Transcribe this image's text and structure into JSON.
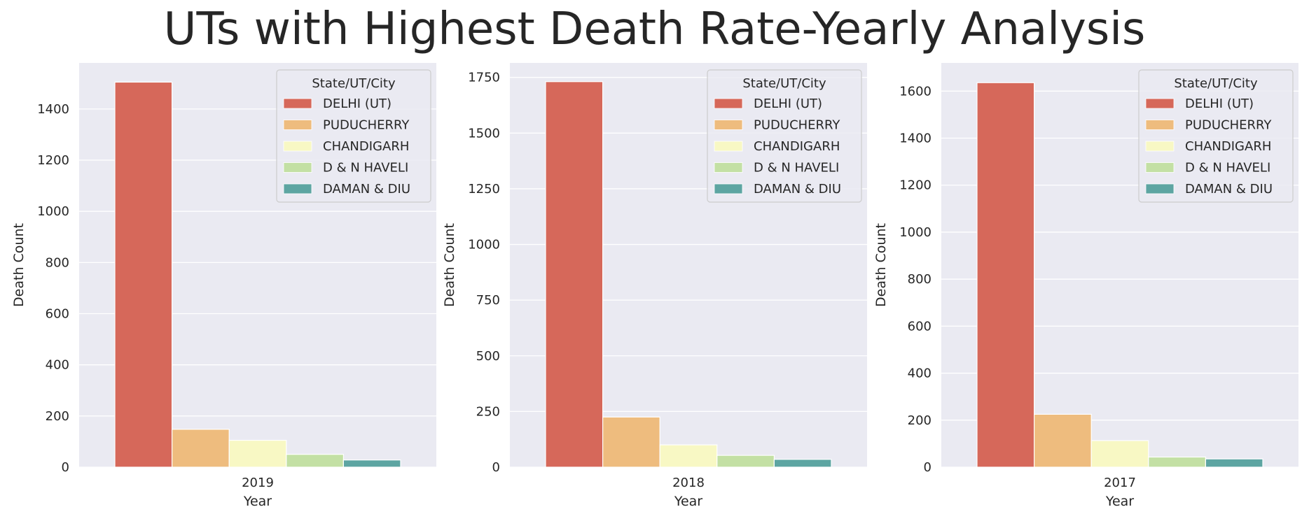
{
  "suptitle": "UTs with Highest Death Rate-Yearly Analysis",
  "colors": {
    "DELHI (UT)": "#d6685a",
    "PUDUCHERRY": "#eebc7e",
    "CHANDIGARH": "#f8f8c4",
    "D & N HAVELI": "#c3e0a4",
    "DAMAN & DIU": "#5da5a2"
  },
  "chart_data": [
    {
      "type": "bar",
      "categories": [
        "2019"
      ],
      "xlabel": "Year",
      "ylabel": "Death Count",
      "ylim": [
        0,
        1580
      ],
      "yticks": [
        0,
        200,
        400,
        600,
        800,
        1000,
        1200,
        1400
      ],
      "ytick_labels": [
        "0",
        "200",
        "400",
        "600",
        "800",
        "1000",
        "1200",
        "1400"
      ],
      "grid": true,
      "legend": {
        "title": "State/UT/City",
        "placement": "upper-right"
      },
      "series": [
        {
          "name": "DELHI (UT)",
          "values": [
            1505
          ]
        },
        {
          "name": "PUDUCHERRY",
          "values": [
            148
          ]
        },
        {
          "name": "CHANDIGARH",
          "values": [
            105
          ]
        },
        {
          "name": "D & N HAVELI",
          "values": [
            50
          ]
        },
        {
          "name": "DAMAN & DIU",
          "values": [
            28
          ]
        }
      ]
    },
    {
      "type": "bar",
      "categories": [
        "2018"
      ],
      "xlabel": "Year",
      "ylabel": "Death Count",
      "ylim": [
        0,
        1815
      ],
      "yticks": [
        0,
        250,
        500,
        750,
        1000,
        1250,
        1500,
        1750
      ],
      "ytick_labels": [
        "0",
        "250",
        "500",
        "750",
        "1000",
        "1250",
        "1500",
        "1750"
      ],
      "grid": true,
      "legend": {
        "title": "State/UT/City",
        "placement": "upper-right"
      },
      "series": [
        {
          "name": "DELHI (UT)",
          "values": [
            1731
          ]
        },
        {
          "name": "PUDUCHERRY",
          "values": [
            225
          ]
        },
        {
          "name": "CHANDIGARH",
          "values": [
            100
          ]
        },
        {
          "name": "D & N HAVELI",
          "values": [
            53
          ]
        },
        {
          "name": "DAMAN & DIU",
          "values": [
            35
          ]
        }
      ]
    },
    {
      "type": "bar",
      "categories": [
        "2017"
      ],
      "xlabel": "Year",
      "ylabel": "Death Count",
      "ylim": [
        0,
        1720
      ],
      "yticks": [
        0,
        200,
        400,
        600,
        800,
        1000,
        1200,
        1400,
        1600
      ],
      "ytick_labels": [
        "0",
        "200",
        "400",
        "600",
        "800",
        "1000",
        "1200",
        "1400",
        "1600"
      ],
      "grid": true,
      "legend": {
        "title": "State/UT/City",
        "placement": "upper-right"
      },
      "series": [
        {
          "name": "DELHI (UT)",
          "values": [
            1636
          ]
        },
        {
          "name": "PUDUCHERRY",
          "values": [
            225
          ]
        },
        {
          "name": "CHANDIGARH",
          "values": [
            113
          ]
        },
        {
          "name": "D & N HAVELI",
          "values": [
            43
          ]
        },
        {
          "name": "DAMAN & DIU",
          "values": [
            35
          ]
        }
      ]
    }
  ]
}
